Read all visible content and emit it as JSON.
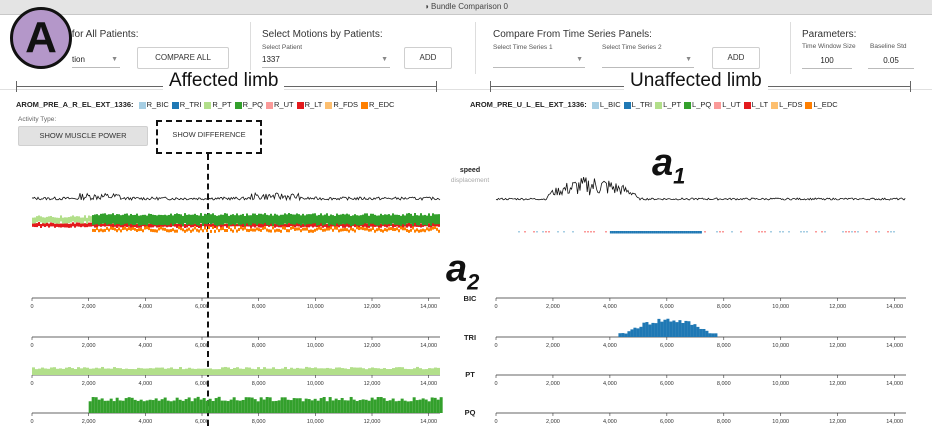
{
  "window": {
    "title": "◑ Bundle Comparison 0"
  },
  "panels": {
    "all_patients": {
      "heading": "s for All Patients:",
      "select_value": "tion",
      "button": "COMPARE ALL"
    },
    "by_patient": {
      "heading": "Select Motions by Patients:",
      "select_label": "Select Patient",
      "select_value": "1337",
      "button": "ADD"
    },
    "time_series": {
      "heading": "Compare From Time Series Panels:",
      "select1_label": "Select Time Series 1",
      "select2_label": "Select Time Series 2",
      "button": "ADD"
    },
    "parameters": {
      "heading": "Parameters:",
      "window_label": "Time Window Size",
      "window_value": "100",
      "baseline_label": "Baseline Std",
      "baseline_value": "0.05"
    }
  },
  "figure": {
    "circle_label": "A",
    "affected": "Affected limb",
    "unaffected": "Unaffected limb",
    "a1": "a",
    "a1_sub": "1",
    "a2": "a",
    "a2_sub": "2"
  },
  "left": {
    "name": "AROM_PRE_A_R_EL_EXT_1336:",
    "legend": [
      {
        "label": "R_BIC",
        "color": "#a6cee3"
      },
      {
        "label": "R_TRI",
        "color": "#1f78b4"
      },
      {
        "label": "R_PT",
        "color": "#b2df8a"
      },
      {
        "label": "R_PQ",
        "color": "#33a02c"
      },
      {
        "label": "R_UT",
        "color": "#fb9a99"
      },
      {
        "label": "R_LT",
        "color": "#e31a1c"
      },
      {
        "label": "R_FDS",
        "color": "#fdbf6f"
      },
      {
        "label": "R_EDC",
        "color": "#ff7f00"
      }
    ],
    "activity_label": "Activity Type:",
    "btn_power": "SHOW MUSCLE POWER",
    "btn_diff": "SHOW DIFFERENCE"
  },
  "right": {
    "name": "AROM_PRE_U_L_EL_EXT_1336:",
    "legend": [
      {
        "label": "L_BIC",
        "color": "#a6cee3"
      },
      {
        "label": "L_TRI",
        "color": "#1f78b4"
      },
      {
        "label": "L_PT",
        "color": "#b2df8a"
      },
      {
        "label": "L_PQ",
        "color": "#33a02c"
      },
      {
        "label": "L_UT",
        "color": "#fb9a99"
      },
      {
        "label": "L_LT",
        "color": "#e31a1c"
      },
      {
        "label": "L_FDS",
        "color": "#fdbf6f"
      },
      {
        "label": "L_EDC",
        "color": "#ff7f00"
      }
    ]
  },
  "center": {
    "speed": "speed",
    "displacement": "displacement"
  },
  "rows": [
    "BIC",
    "TRI",
    "PT",
    "PQ"
  ],
  "axis_ticks": [
    "0",
    "2,000",
    "4,000",
    "6,000",
    "8,000",
    "10,000",
    "12,000",
    "14,000"
  ],
  "chart_data": {
    "type": "bar",
    "x_range": [
      0,
      14400
    ],
    "tick_values": [
      0,
      2000,
      4000,
      6000,
      8000,
      10000,
      12000,
      14000
    ],
    "left_series": {
      "BIC": [],
      "TRI": [],
      "PT": {
        "start": 0,
        "end": 14400,
        "level": 0.35
      },
      "PQ": {
        "start": 2000,
        "end": 14400,
        "level": 0.7
      }
    },
    "right_series": {
      "BIC": [],
      "TRI": {
        "start": 4300,
        "end": 7700,
        "peak": 6000,
        "level": 0.9
      },
      "PT": [],
      "PQ": []
    }
  }
}
